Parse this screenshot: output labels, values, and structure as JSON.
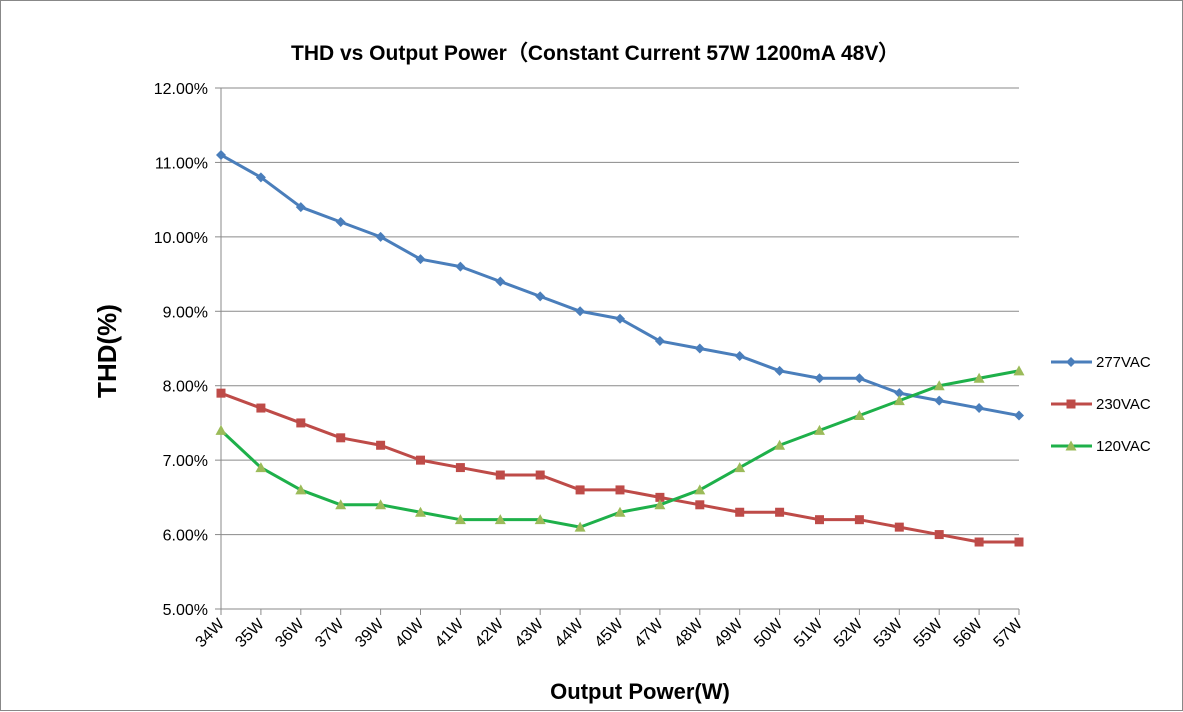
{
  "chart_data": {
    "type": "line",
    "title": "THD vs Output Power（Constant Current 57W  1200mA 48V）",
    "xlabel": "Output Power(W)",
    "ylabel": "THD(%)",
    "ylim": [
      5.0,
      12.0
    ],
    "yticks": [
      "5.00%",
      "6.00%",
      "7.00%",
      "8.00%",
      "9.00%",
      "10.00%",
      "11.00%",
      "12.00%"
    ],
    "grid": "horizontal",
    "legend_position": "right",
    "categories": [
      "34W",
      "35W",
      "36W",
      "37W",
      "39W",
      "40W",
      "41W",
      "42W",
      "43W",
      "44W",
      "45W",
      "47W",
      "48W",
      "49W",
      "50W",
      "51W",
      "52W",
      "53W",
      "55W",
      "56W",
      "57W"
    ],
    "series": [
      {
        "name": "277VAC",
        "color": "#4A7EBB",
        "marker": "diamond",
        "values": [
          11.1,
          10.8,
          10.4,
          10.2,
          10.0,
          9.7,
          9.6,
          9.4,
          9.2,
          9.0,
          8.9,
          8.6,
          8.5,
          8.4,
          8.2,
          8.1,
          8.1,
          7.9,
          7.8,
          7.7,
          7.6
        ]
      },
      {
        "name": "230VAC",
        "color": "#BE4B48",
        "marker": "square",
        "values": [
          7.9,
          7.7,
          7.5,
          7.3,
          7.2,
          7.0,
          6.9,
          6.8,
          6.8,
          6.6,
          6.6,
          6.5,
          6.4,
          6.3,
          6.3,
          6.2,
          6.2,
          6.1,
          6.0,
          5.9,
          5.9
        ]
      },
      {
        "name": "120VAC",
        "color": "#1EB04A",
        "marker": "triangle",
        "marker_color": "#9BBB59",
        "values": [
          7.4,
          6.9,
          6.6,
          6.4,
          6.4,
          6.3,
          6.2,
          6.2,
          6.2,
          6.1,
          6.3,
          6.4,
          6.6,
          6.9,
          7.2,
          7.4,
          7.6,
          7.8,
          8.0,
          8.1,
          8.2
        ]
      }
    ]
  }
}
